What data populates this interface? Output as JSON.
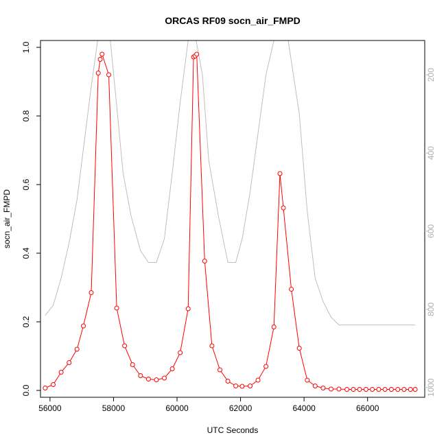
{
  "chart_data": {
    "type": "line",
    "title": "ORCAS RF09 socn_air_FMPD",
    "xlabel": "UTC Seconds",
    "ylabel": "socn_air_FMPD",
    "xlim": [
      55700,
      67800
    ],
    "ylim": [
      -0.02,
      1.02
    ],
    "x_ticks": [
      56000,
      58000,
      60000,
      62000,
      64000,
      66000
    ],
    "x_tick_labels": [
      "56000",
      "58000",
      "60000",
      "62000",
      "64000",
      "66000"
    ],
    "y_ticks": [
      0.0,
      0.2,
      0.4,
      0.6,
      0.8,
      1.0
    ],
    "y_tick_labels": [
      "0.0",
      "0.2",
      "0.4",
      "0.6",
      "0.8",
      "1.0"
    ],
    "secondary_axis": {
      "side": "right",
      "reversed": true,
      "lim": [
        112,
        1025
      ],
      "ticks": [
        200,
        400,
        600,
        800,
        1000
      ],
      "tick_labels": [
        "200",
        "400",
        "600",
        "800",
        "1000"
      ],
      "color": "#bebebe"
    },
    "series": [
      {
        "color": "#ff0000",
        "marker": "open-circle",
        "x": [
          55850,
          56100,
          56350,
          56600,
          56850,
          57050,
          57300,
          57520,
          57580,
          57640,
          57850,
          58100,
          58350,
          58600,
          58850,
          59100,
          59350,
          59600,
          59850,
          60100,
          60350,
          60520,
          60570,
          60620,
          60870,
          61100,
          61350,
          61600,
          61850,
          62050,
          62300,
          62550,
          62800,
          63050,
          63240,
          63350,
          63600,
          63850,
          64100,
          64350,
          64600,
          64850,
          65100,
          65350,
          65550,
          65750,
          65950,
          66150,
          66350,
          66550,
          66750,
          66950,
          67150,
          67350,
          67500
        ],
        "y": [
          0.007,
          0.017,
          0.053,
          0.081,
          0.12,
          0.188,
          0.285,
          0.925,
          0.965,
          0.98,
          0.92,
          0.24,
          0.13,
          0.075,
          0.043,
          0.033,
          0.031,
          0.036,
          0.063,
          0.11,
          0.238,
          0.972,
          0.975,
          0.98,
          0.377,
          0.13,
          0.06,
          0.027,
          0.013,
          0.012,
          0.013,
          0.03,
          0.07,
          0.185,
          0.632,
          0.532,
          0.295,
          0.123,
          0.03,
          0.013,
          0.007,
          0.004,
          0.004,
          0.003,
          0.003,
          0.003,
          0.003,
          0.003,
          0.003,
          0.003,
          0.003,
          0.003,
          0.003,
          0.003,
          0.003
        ]
      },
      {
        "color": "#bebebe",
        "axis": "secondary",
        "x": [
          55850,
          56100,
          56350,
          56600,
          56850,
          57050,
          57300,
          57500,
          57700,
          57900,
          58100,
          58300,
          58550,
          58850,
          59100,
          59350,
          59600,
          59850,
          60100,
          60350,
          60500,
          60600,
          60800,
          61000,
          61300,
          61600,
          61850,
          62050,
          62300,
          62550,
          62800,
          63050,
          63250,
          63500,
          63850,
          64100,
          64350,
          64600,
          64850,
          65100,
          65350,
          65600,
          65850,
          66100,
          66500,
          67000,
          67500
        ],
        "y": [
          815,
          790,
          720,
          630,
          520,
          390,
          230,
          112,
          112,
          112,
          280,
          450,
          560,
          650,
          680,
          680,
          620,
          450,
          270,
          112,
          112,
          112,
          200,
          420,
          560,
          680,
          680,
          620,
          500,
          350,
          200,
          112,
          112,
          112,
          300,
          550,
          720,
          780,
          820,
          840,
          840,
          840,
          840,
          840,
          840,
          840,
          840
        ]
      }
    ]
  }
}
